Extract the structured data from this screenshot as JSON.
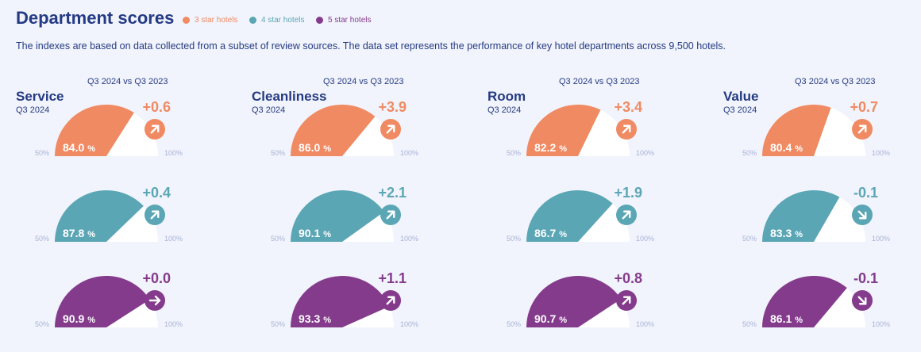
{
  "title": "Department scores",
  "subtitle": "The indexes are based on data collected from a subset of review sources. The data set represents the performance of key hotel departments across 9,500 hotels.",
  "legend": [
    {
      "label": "3 star hotels",
      "color": "#f08a62"
    },
    {
      "label": "4 star hotels",
      "color": "#5ba6b5"
    },
    {
      "label": "5 star hotels",
      "color": "#843b8c"
    }
  ],
  "chart_data": {
    "type": "gauge",
    "range": [
      50,
      100
    ],
    "range_labels": [
      "50%",
      "100%"
    ],
    "comparison_label": "Q3 2024 vs Q3 2023",
    "period_label": "Q3 2024",
    "unit": "%",
    "series_names": [
      "3 star hotels",
      "4 star hotels",
      "5 star hotels"
    ],
    "departments": [
      {
        "name": "Service",
        "values": [
          84.0,
          87.8,
          90.9
        ],
        "deltas": [
          "+0.6",
          "+0.4",
          "+0.0"
        ]
      },
      {
        "name": "Cleanliness",
        "values": [
          86.0,
          90.1,
          93.3
        ],
        "deltas": [
          "+3.9",
          "+2.1",
          "+1.1"
        ]
      },
      {
        "name": "Room",
        "values": [
          82.2,
          86.7,
          90.7
        ],
        "deltas": [
          "+3.4",
          "+1.9",
          "+0.8"
        ]
      },
      {
        "name": "Value",
        "values": [
          80.4,
          83.3,
          86.1
        ],
        "deltas": [
          "+0.7",
          "-0.1",
          "-0.1"
        ]
      }
    ]
  }
}
